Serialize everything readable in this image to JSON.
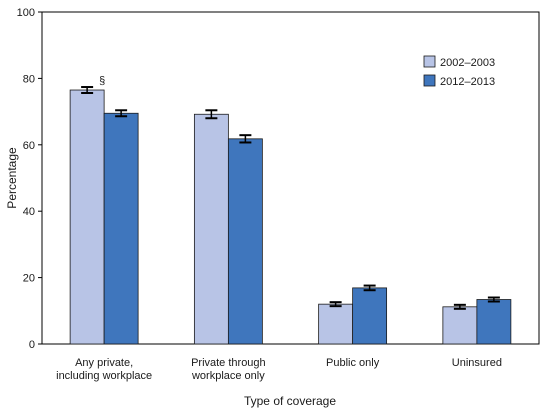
{
  "chart_data": {
    "type": "bar",
    "title": "",
    "xlabel": "Type of coverage",
    "ylabel": "Percentage",
    "ylim": [
      0,
      100
    ],
    "yticks": [
      0,
      20,
      40,
      60,
      80,
      100
    ],
    "categories": [
      [
        "Any private,",
        "including workplace"
      ],
      [
        "Private through",
        "workplace only"
      ],
      [
        "Public only"
      ],
      [
        "Uninsured"
      ]
    ],
    "series": [
      {
        "name": "2002–2003",
        "color": "#b8c4e6",
        "values": [
          76.5,
          69.2,
          12.0,
          11.2
        ],
        "errors": [
          0.9,
          1.2,
          0.6,
          0.6
        ]
      },
      {
        "name": "2012–2013",
        "color": "#3f76bd",
        "values": [
          69.5,
          61.8,
          16.9,
          13.4
        ],
        "errors": [
          0.9,
          1.1,
          0.7,
          0.6
        ]
      }
    ],
    "annotations": [
      {
        "text": "§",
        "category": 0,
        "series": 0
      }
    ],
    "legend": "top-right",
    "grid": false
  }
}
